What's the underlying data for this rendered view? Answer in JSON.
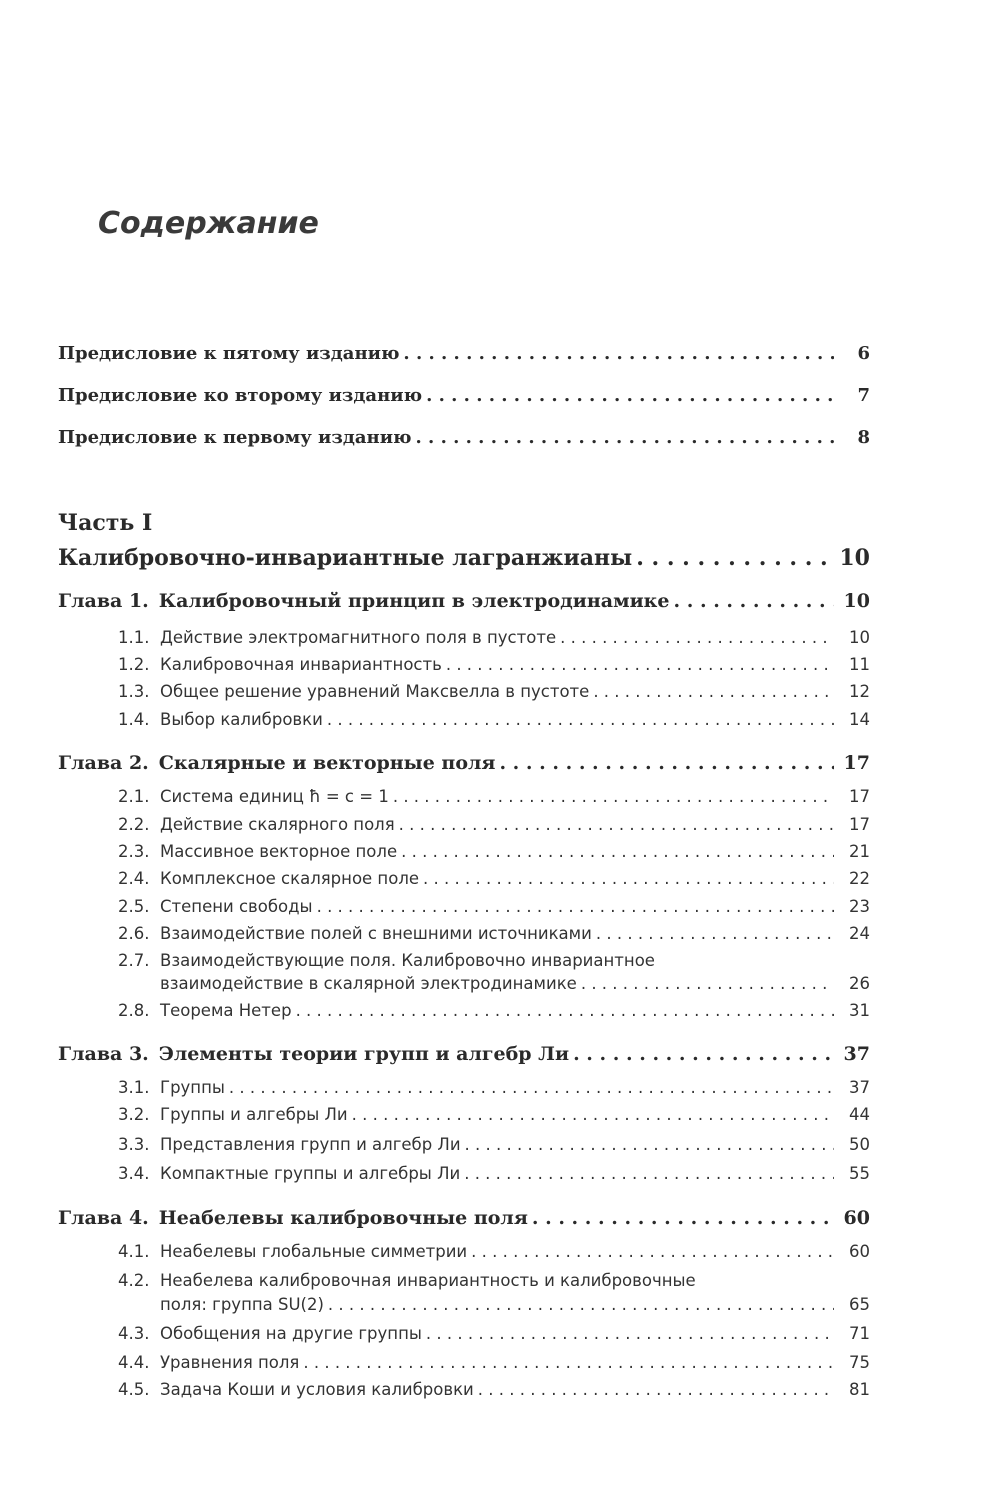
{
  "title": "Содержание",
  "prefaces": [
    {
      "text": "Предисловие к пятому изданию",
      "page": "6"
    },
    {
      "text": "Предисловие ко второму изданию",
      "page": "7"
    },
    {
      "text": "Предисловие к первому изданию",
      "page": "8"
    }
  ],
  "part": {
    "label": "Часть I",
    "title": "Калибровочно-инвариантные лагранжианы",
    "page": "10"
  },
  "chapters": [
    {
      "num": "Глава 1.",
      "title": "Калибровочный принцип в электродинамике",
      "page": "10",
      "sections": [
        {
          "num": "1.1.",
          "text": "Действие электромагнитного поля в пустоте",
          "page": "10"
        },
        {
          "num": "1.2.",
          "text": "Калибровочная инвариантность",
          "page": "11"
        },
        {
          "num": "1.3.",
          "text": "Общее решение уравнений Максвелла в пустоте",
          "page": "12"
        },
        {
          "num": "1.4.",
          "text": "Выбор калибровки",
          "page": "14"
        }
      ]
    },
    {
      "num": "Глава 2.",
      "title": "Скалярные и векторные поля",
      "page": "17",
      "sections": [
        {
          "num": "2.1.",
          "text": "Система единиц ħ = c = 1",
          "page": "17"
        },
        {
          "num": "2.2.",
          "text": "Действие скалярного поля",
          "page": "17"
        },
        {
          "num": "2.3.",
          "text": "Массивное векторное поле",
          "page": "21"
        },
        {
          "num": "2.4.",
          "text": "Комплексное скалярное поле",
          "page": "22"
        },
        {
          "num": "2.5.",
          "text": "Степени свободы",
          "page": "23"
        },
        {
          "num": "2.6.",
          "text": "Взаимодействие полей с внешними источниками",
          "page": "24"
        },
        {
          "num": "2.7.",
          "text": "Взаимодействующие поля. Калибровочно инвариантное",
          "cont": "взаимодействие в скалярной электродинамике",
          "page": "26"
        },
        {
          "num": "2.8.",
          "text": "Теорема Нетер",
          "page": "31"
        }
      ]
    },
    {
      "num": "Глава 3.",
      "title": "Элементы теории групп и алгебр Ли",
      "page": "37",
      "sections": [
        {
          "num": "3.1.",
          "text": "Группы",
          "page": "37"
        },
        {
          "num": "3.2.",
          "text": "Группы и алгебры Ли",
          "page": "44"
        },
        {
          "num": "3.3.",
          "text": "Представления групп и алгебр Ли",
          "page": "50"
        },
        {
          "num": "3.4.",
          "text": "Компактные группы и алгебры Ли",
          "page": "55"
        }
      ]
    },
    {
      "num": "Глава 4.",
      "title": "Неабелевы калибровочные поля",
      "page": "60",
      "sections": [
        {
          "num": "4.1.",
          "text": "Неабелевы глобальные симметрии",
          "page": "60"
        },
        {
          "num": "4.2.",
          "text": "Неабелева калибровочная инвариантность и калибровочные",
          "cont": "поля: группа SU(2)",
          "page": "65"
        },
        {
          "num": "4.3.",
          "text": "Обобщения на другие группы",
          "page": "71"
        },
        {
          "num": "4.4.",
          "text": "Уравнения поля",
          "page": "75"
        },
        {
          "num": "4.5.",
          "text": "Задача Коши и условия калибровки",
          "page": "81"
        }
      ]
    }
  ]
}
